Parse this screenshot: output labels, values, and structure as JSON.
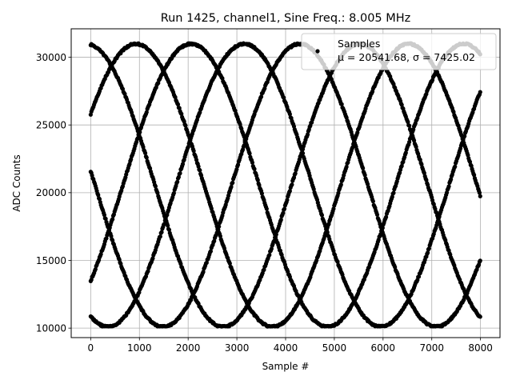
{
  "chart_data": {
    "type": "scatter",
    "title": "Run 1425, channel1, Sine Freq.: 8.005 MHz",
    "xlabel": "Sample #",
    "ylabel": "ADC Counts",
    "xlim": [
      -400,
      8400
    ],
    "ylim": [
      9300,
      32100
    ],
    "x_ticks": [
      0,
      1000,
      2000,
      3000,
      4000,
      5000,
      6000,
      7000,
      8000
    ],
    "x_tick_labels": [
      "0",
      "1000",
      "2000",
      "3000",
      "4000",
      "5000",
      "6000",
      "7000",
      "8000"
    ],
    "y_ticks": [
      10000,
      15000,
      20000,
      25000,
      30000
    ],
    "y_tick_labels": [
      "10000",
      "15000",
      "20000",
      "25000",
      "30000"
    ],
    "grid": true,
    "marker": "o",
    "marker_color": "#000000",
    "legend": {
      "placement": "upper-right",
      "entries": [
        {
          "label": "Samples",
          "stats": "μ = 20541.68, σ = 7425.02"
        }
      ]
    },
    "series": [
      {
        "name": "Samples",
        "sample_range": [
          0,
          8000
        ],
        "mean": 20541.68,
        "amplitude": 10450,
        "clip_high": 31000,
        "clip_low": 10150,
        "period_samples": 5600,
        "traces_start_values": [
          30950,
          25800,
          21600,
          13500,
          10900
        ]
      }
    ]
  }
}
